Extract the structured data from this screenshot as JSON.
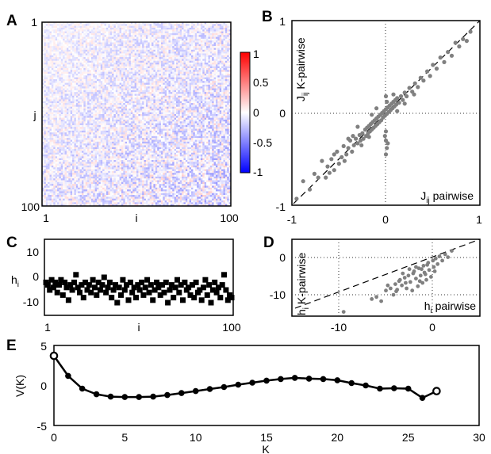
{
  "chart_data": [
    {
      "panel": "A",
      "type": "heatmap",
      "xlabel": "i",
      "ylabel": "j",
      "x_ticks": [
        "1",
        "100"
      ],
      "y_ticks": [
        "1",
        "100"
      ],
      "size": 100,
      "colorbar": {
        "ticks": [
          "1",
          "0.5",
          "0",
          "-0.5",
          "-1"
        ],
        "range": [
          -1,
          1
        ],
        "colors": {
          "min": "#0000ff",
          "mid": "#ffffff",
          "max": "#ff0000"
        }
      },
      "description_values": {
        "typical_range": [
          -0.5,
          0.15
        ],
        "diagonal": 0
      }
    },
    {
      "panel": "B",
      "type": "scatter",
      "xlabel": "J_ij pairwise",
      "ylabel": "J_ij K-pairwise",
      "xlabel_main": "J",
      "xlabel_sub": "ij",
      "xlabel_rest": " pairwise",
      "ylabel_main": "J",
      "ylabel_sub": "ij",
      "ylabel_rest": " K-pairwise",
      "xlim": [
        -1,
        1
      ],
      "ylim": [
        -1,
        1
      ],
      "x_ticks": [
        "-1",
        "0",
        "1"
      ],
      "y_ticks": [
        "-1",
        "0",
        "1"
      ],
      "point_color": "#808080",
      "diagonal_line": true,
      "points": [
        [
          -0.95,
          -0.93
        ],
        [
          -0.88,
          -0.74
        ],
        [
          -0.81,
          -0.83
        ],
        [
          -0.76,
          -0.66
        ],
        [
          -0.72,
          -0.7
        ],
        [
          -0.68,
          -0.52
        ],
        [
          -0.64,
          -0.7
        ],
        [
          -0.62,
          -0.58
        ],
        [
          -0.58,
          -0.5
        ],
        [
          -0.55,
          -0.62
        ],
        [
          -0.52,
          -0.42
        ],
        [
          -0.5,
          -0.55
        ],
        [
          -0.47,
          -0.48
        ],
        [
          -0.45,
          -0.36
        ],
        [
          -0.42,
          -0.45
        ],
        [
          -0.4,
          -0.38
        ],
        [
          -0.38,
          -0.3
        ],
        [
          -0.36,
          -0.42
        ],
        [
          -0.34,
          -0.35
        ],
        [
          -0.32,
          -0.28
        ],
        [
          -0.3,
          -0.33
        ],
        [
          -0.28,
          -0.24
        ],
        [
          -0.27,
          -0.3
        ],
        [
          -0.25,
          -0.22
        ],
        [
          -0.24,
          -0.28
        ],
        [
          -0.22,
          -0.18
        ],
        [
          -0.21,
          -0.25
        ],
        [
          -0.2,
          -0.16
        ],
        [
          -0.19,
          -0.22
        ],
        [
          -0.18,
          -0.14
        ],
        [
          -0.17,
          -0.2
        ],
        [
          -0.16,
          -0.12
        ],
        [
          -0.15,
          -0.18
        ],
        [
          -0.14,
          -0.1
        ],
        [
          -0.13,
          -0.16
        ],
        [
          -0.12,
          -0.08
        ],
        [
          -0.11,
          -0.14
        ],
        [
          -0.1,
          -0.06
        ],
        [
          -0.09,
          -0.12
        ],
        [
          -0.08,
          -0.04
        ],
        [
          -0.07,
          -0.1
        ],
        [
          -0.06,
          -0.02
        ],
        [
          -0.05,
          -0.08
        ],
        [
          -0.04,
          0.0
        ],
        [
          -0.03,
          -0.05
        ],
        [
          -0.02,
          0.02
        ],
        [
          -0.01,
          -0.03
        ],
        [
          0.0,
          0.04
        ],
        [
          0.01,
          -0.01
        ],
        [
          0.02,
          0.06
        ],
        [
          0.03,
          0.01
        ],
        [
          0.04,
          0.08
        ],
        [
          0.05,
          0.03
        ],
        [
          0.06,
          0.1
        ],
        [
          0.07,
          0.05
        ],
        [
          0.08,
          0.12
        ],
        [
          0.09,
          0.07
        ],
        [
          0.1,
          0.14
        ],
        [
          0.11,
          0.09
        ],
        [
          0.12,
          0.16
        ],
        [
          0.14,
          0.11
        ],
        [
          0.16,
          0.18
        ],
        [
          0.18,
          0.14
        ],
        [
          0.2,
          0.22
        ],
        [
          0.22,
          0.18
        ],
        [
          0.25,
          0.27
        ],
        [
          0.28,
          0.23
        ],
        [
          0.31,
          0.32
        ],
        [
          0.34,
          0.28
        ],
        [
          0.37,
          0.38
        ],
        [
          0.4,
          0.35
        ],
        [
          0.44,
          0.45
        ],
        [
          0.47,
          0.4
        ],
        [
          0.5,
          0.52
        ],
        [
          0.54,
          0.48
        ],
        [
          0.58,
          0.6
        ],
        [
          0.62,
          0.55
        ],
        [
          0.66,
          0.66
        ],
        [
          0.7,
          0.62
        ],
        [
          0.74,
          0.76
        ],
        [
          0.78,
          0.72
        ],
        [
          0.82,
          0.8
        ],
        [
          0.86,
          0.78
        ],
        [
          0.9,
          0.88
        ],
        [
          -0.55,
          -0.45
        ],
        [
          -0.6,
          -0.65
        ],
        [
          -0.44,
          -0.52
        ],
        [
          -0.35,
          -0.25
        ],
        [
          -0.26,
          -0.35
        ],
        [
          -0.18,
          -0.26
        ],
        [
          0.0,
          -0.2
        ],
        [
          0.0,
          -0.3
        ],
        [
          0.01,
          -0.38
        ],
        [
          0.0,
          -0.45
        ],
        [
          -0.01,
          -0.25
        ],
        [
          0.02,
          -0.33
        ],
        [
          0.0,
          0.18
        ],
        [
          0.01,
          0.12
        ],
        [
          -0.1,
          0.05
        ],
        [
          -0.15,
          -0.02
        ],
        [
          0.12,
          0.02
        ],
        [
          0.2,
          0.1
        ],
        [
          -0.3,
          -0.15
        ],
        [
          0.3,
          0.2
        ],
        [
          -0.4,
          -0.28
        ],
        [
          0.08,
          0.2
        ]
      ]
    },
    {
      "panel": "C",
      "type": "scatter",
      "xlabel": "i",
      "ylabel": "h_i",
      "ylabel_main": "h",
      "ylabel_sub": "i",
      "xlim": [
        1,
        100
      ],
      "ylim": [
        -15,
        15
      ],
      "x_ticks": [
        "1",
        "100"
      ],
      "y_ticks": [
        "10",
        "0",
        "-10"
      ],
      "marker": "square",
      "marker_color": "#000000",
      "x": [
        1,
        2,
        3,
        4,
        5,
        6,
        7,
        8,
        9,
        10,
        11,
        12,
        13,
        14,
        15,
        16,
        17,
        18,
        19,
        20,
        21,
        22,
        23,
        24,
        25,
        26,
        27,
        28,
        29,
        30,
        31,
        32,
        33,
        34,
        35,
        36,
        37,
        38,
        39,
        40,
        41,
        42,
        43,
        44,
        45,
        46,
        47,
        48,
        49,
        50,
        51,
        52,
        53,
        54,
        55,
        56,
        57,
        58,
        59,
        60,
        61,
        62,
        63,
        64,
        65,
        66,
        67,
        68,
        69,
        70,
        71,
        72,
        73,
        74,
        75,
        76,
        77,
        78,
        79,
        80,
        81,
        82,
        83,
        84,
        85,
        86,
        87,
        88,
        89,
        90,
        91,
        92,
        93,
        94,
        95,
        96,
        97,
        98,
        99,
        100
      ],
      "y": [
        -2,
        -3,
        -5,
        -1,
        -4,
        -2,
        -6,
        -3,
        -1,
        -7,
        -2,
        -4,
        -9,
        -3,
        -5,
        -2,
        1,
        -4,
        -6,
        -3,
        -8,
        -2,
        -5,
        -3,
        -6,
        -1,
        -4,
        -7,
        -2,
        -5,
        -3,
        0,
        -6,
        -4,
        -2,
        -8,
        -5,
        -3,
        -10,
        -4,
        -7,
        -1,
        -5,
        -3,
        -9,
        -2,
        -6,
        -4,
        -8,
        -3,
        -5,
        -2,
        -7,
        -4,
        -1,
        -6,
        -3,
        -9,
        -5,
        -2,
        -4,
        -7,
        -3,
        -6,
        -2,
        -10,
        -5,
        -3,
        -8,
        -4,
        -1,
        -6,
        -3,
        -9,
        -2,
        -5,
        -4,
        -7,
        -3,
        -8,
        -2,
        -6,
        -5,
        -9,
        -4,
        -1,
        -7,
        -3,
        -10,
        -5,
        -2,
        -6,
        -4,
        -8,
        -3,
        1,
        -5,
        -9,
        -7,
        -8
      ]
    },
    {
      "panel": "D",
      "type": "scatter",
      "xlabel": "h_i pairwise",
      "ylabel": "h_i K-pairwise",
      "xlabel_main": "h",
      "xlabel_sub": "i",
      "xlabel_rest": " pairwise",
      "ylabel_main": "h",
      "ylabel_sub": "i",
      "ylabel_rest": " K-pairwise",
      "xlim": [
        -15,
        5
      ],
      "ylim": [
        -15,
        3
      ],
      "x_ticks": [
        "-10",
        "0"
      ],
      "y_ticks": [
        "0",
        "-10"
      ],
      "point_color": "#808080",
      "diagonal_line": true,
      "points": [
        [
          -9.5,
          -14
        ],
        [
          -6.5,
          -11
        ],
        [
          -6,
          -10.5
        ],
        [
          -5.5,
          -11.5
        ],
        [
          -5,
          -9
        ],
        [
          -4.5,
          -8.5
        ],
        [
          -4.2,
          -10
        ],
        [
          -4,
          -7.5
        ],
        [
          -3.8,
          -8.8
        ],
        [
          -3.5,
          -6.5
        ],
        [
          -3.3,
          -7.8
        ],
        [
          -3,
          -6
        ],
        [
          -2.8,
          -8.5
        ],
        [
          -2.6,
          -5.5
        ],
        [
          -2.4,
          -7
        ],
        [
          -2.2,
          -9
        ],
        [
          -2,
          -4.5
        ],
        [
          -1.8,
          -6.2
        ],
        [
          -1.6,
          -8
        ],
        [
          -1.5,
          -3.8
        ],
        [
          -1.3,
          -5.5
        ],
        [
          -1.1,
          -7.2
        ],
        [
          -1,
          -3.2
        ],
        [
          -0.9,
          -4.8
        ],
        [
          -0.7,
          -6.5
        ],
        [
          -0.5,
          -2.5
        ],
        [
          -0.4,
          -4.2
        ],
        [
          -0.2,
          -5.8
        ],
        [
          0,
          -2
        ],
        [
          0.1,
          -3.5
        ],
        [
          0.3,
          -1.5
        ],
        [
          0.5,
          -2.8
        ],
        [
          0.7,
          -1
        ],
        [
          1,
          -2
        ],
        [
          1.3,
          -0.5
        ],
        [
          1.6,
          -1.2
        ],
        [
          2,
          0.3
        ],
        [
          -3.2,
          -5
        ],
        [
          -2.5,
          -4
        ],
        [
          -1.8,
          -3.5
        ],
        [
          -3.6,
          -6.8
        ],
        [
          -4.8,
          -7.8
        ],
        [
          -2.1,
          -5
        ],
        [
          -1.2,
          -4
        ],
        [
          -0.6,
          -3
        ],
        [
          -2.9,
          -7.2
        ],
        [
          -3.9,
          -9.2
        ],
        [
          -1.4,
          -6.8
        ],
        [
          -0.8,
          -5.2
        ],
        [
          0.2,
          -4.5
        ]
      ]
    },
    {
      "panel": "E",
      "type": "line",
      "xlabel": "K",
      "ylabel": "V(K)",
      "xlim": [
        0,
        30
      ],
      "ylim": [
        -5,
        5
      ],
      "x_ticks": [
        "0",
        "5",
        "10",
        "15",
        "20",
        "25",
        "30"
      ],
      "y_ticks": [
        "5",
        "0",
        "-5"
      ],
      "x": [
        0,
        1,
        2,
        3,
        4,
        5,
        6,
        7,
        8,
        9,
        10,
        11,
        12,
        13,
        14,
        15,
        16,
        17,
        18,
        19,
        20,
        21,
        22,
        23,
        24,
        25,
        26,
        27
      ],
      "y": [
        3.7,
        1.2,
        -0.4,
        -1.1,
        -1.4,
        -1.45,
        -1.45,
        -1.4,
        -1.2,
        -0.95,
        -0.7,
        -0.45,
        -0.2,
        0.1,
        0.35,
        0.6,
        0.8,
        0.95,
        0.85,
        0.8,
        0.65,
        0.3,
        0.0,
        -0.4,
        -0.35,
        -0.4,
        -1.55,
        -0.7
      ]
    }
  ]
}
